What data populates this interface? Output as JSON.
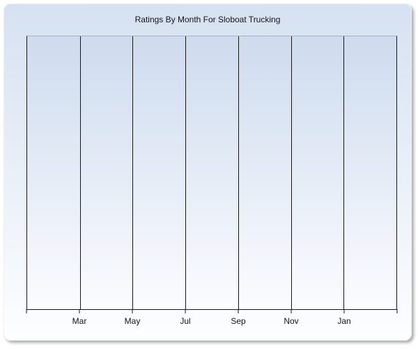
{
  "window": {
    "title": "Ratings By Month For Sloboat Trucking"
  },
  "chart_data": {
    "type": "line",
    "title": "Ratings By Month For Sloboat Trucking",
    "categories": [
      "Mar",
      "May",
      "Jul",
      "Sep",
      "Nov",
      "Jan"
    ],
    "series": [],
    "xlabel": "",
    "ylabel": "",
    "x_intervals": 7,
    "grid": "vertical-gridlines-only",
    "legend": "none",
    "notes": "empty plot area, no data series rendered"
  },
  "colors": {
    "panel_gradient_top": "#d6e1f1",
    "panel_gradient_bottom": "#fdfeff",
    "plot_gradient_top": "#cedbee",
    "plot_gradient_bottom": "#fbfcfe",
    "grid_line": "#161616",
    "plot_top_border": "#a9b0bf",
    "text": "#141414",
    "shadow": "#9a9a9a"
  }
}
